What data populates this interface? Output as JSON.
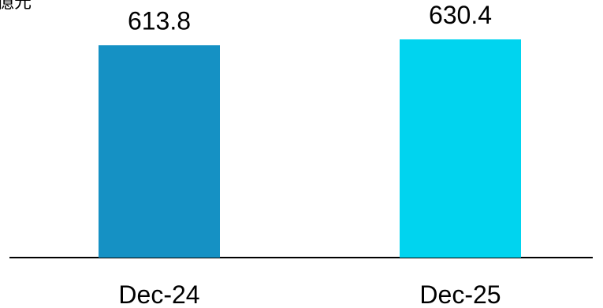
{
  "chart_data": {
    "type": "bar",
    "unit_label": "億元",
    "categories": [
      "Dec-24",
      "Dec-25"
    ],
    "values": [
      613.8,
      630.4
    ],
    "data_labels": [
      "613.8",
      "630.4"
    ],
    "colors": [
      "#1591C4",
      "#00D4EF"
    ],
    "ylim": [
      0,
      660
    ],
    "grid": false,
    "legend": "none"
  }
}
